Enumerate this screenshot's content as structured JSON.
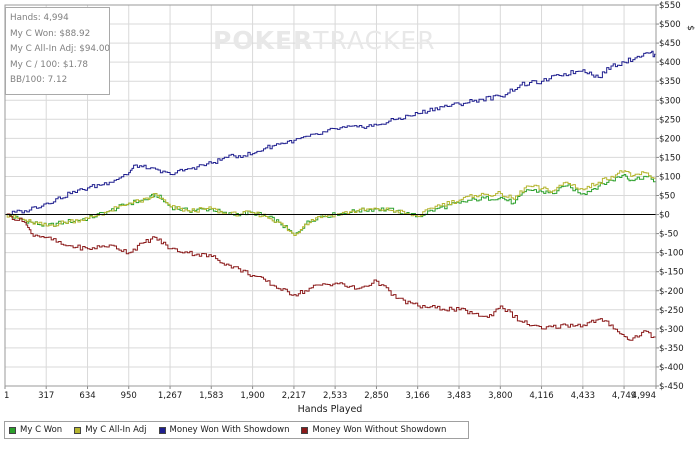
{
  "watermark": {
    "part1": "POKER",
    "part2": "TRACKER"
  },
  "stats": {
    "hands": "Hands: 4,994",
    "won": "My C Won: $88.92",
    "allin": "My C All-In Adj: $94.00",
    "per100": "My C / 100: $1.78",
    "bb100": "BB/100: 7.12"
  },
  "legend": {
    "items": [
      {
        "label": "My C Won",
        "color": "#2ca02c"
      },
      {
        "label": "My C All-In Adj",
        "color": "#b5b52f"
      },
      {
        "label": "Money Won With Showdown",
        "color": "#1f1f8f"
      },
      {
        "label": "Money Won Without Showdown",
        "color": "#8b1a1a"
      }
    ]
  },
  "chart_data": {
    "type": "line",
    "xlabel": "Hands Played",
    "ylabel": "$",
    "xlim": [
      1,
      4994
    ],
    "ylim": [
      -450,
      550
    ],
    "x_ticks": [
      1,
      317,
      634,
      950,
      1267,
      1583,
      1900,
      2217,
      2533,
      2850,
      3166,
      3483,
      3800,
      4116,
      4433,
      4749,
      4994
    ],
    "x_tick_labels": [
      "1",
      "317",
      "634",
      "950",
      "1,267",
      "1,583",
      "1,900",
      "2,217",
      "2,533",
      "2,850",
      "3,166",
      "3,483",
      "3,800",
      "4,116",
      "4,433",
      "4,749",
      "4,994"
    ],
    "y_ticks": [
      550,
      500,
      450,
      400,
      350,
      300,
      250,
      200,
      150,
      100,
      50,
      0,
      -50,
      -100,
      -150,
      -200,
      -250,
      -300,
      -350,
      -400,
      -450
    ],
    "y_tick_labels": [
      "$550",
      "$500",
      "$450",
      "$400",
      "$350",
      "$300",
      "$250",
      "$200",
      "$150",
      "$100",
      "$50",
      "$0",
      "$-50",
      "$-100",
      "$-150",
      "$-200",
      "$-250",
      "$-300",
      "$-350",
      "$-400",
      "$-450"
    ],
    "grid": true,
    "series": [
      {
        "name": "My C Won",
        "color": "#2ca02c",
        "x": [
          1,
          100,
          200,
          317,
          450,
          634,
          800,
          950,
          1100,
          1150,
          1267,
          1400,
          1583,
          1700,
          1900,
          2000,
          2100,
          2217,
          2300,
          2400,
          2533,
          2700,
          2850,
          3000,
          3100,
          3166,
          3300,
          3483,
          3600,
          3800,
          3900,
          4000,
          4116,
          4200,
          4300,
          4433,
          4550,
          4649,
          4749,
          4800,
          4900,
          4994
        ],
        "y": [
          0,
          -10,
          -20,
          -30,
          -20,
          -10,
          10,
          30,
          40,
          55,
          20,
          10,
          15,
          0,
          5,
          -5,
          -20,
          -55,
          -25,
          -5,
          0,
          10,
          15,
          10,
          0,
          -5,
          15,
          30,
          40,
          45,
          30,
          65,
          60,
          55,
          75,
          55,
          75,
          90,
          105,
          90,
          100,
          88.92
        ]
      },
      {
        "name": "My C All-In Adj",
        "color": "#b5b52f",
        "x": [
          1,
          100,
          200,
          317,
          450,
          634,
          800,
          950,
          1100,
          1150,
          1267,
          1400,
          1583,
          1700,
          1900,
          2000,
          2100,
          2217,
          2300,
          2400,
          2533,
          2700,
          2850,
          3000,
          3100,
          3166,
          3300,
          3483,
          3600,
          3800,
          3900,
          4000,
          4116,
          4200,
          4300,
          4433,
          4550,
          4649,
          4749,
          4800,
          4900,
          4994
        ],
        "y": [
          0,
          -10,
          -20,
          -30,
          -20,
          -10,
          10,
          30,
          40,
          55,
          20,
          10,
          15,
          0,
          5,
          -5,
          -20,
          -55,
          -25,
          -5,
          0,
          10,
          15,
          10,
          0,
          -5,
          22,
          38,
          50,
          55,
          40,
          75,
          68,
          62,
          85,
          65,
          85,
          100,
          115,
          100,
          110,
          94
        ]
      },
      {
        "name": "Money Won With Showdown",
        "color": "#1f1f8f",
        "x": [
          1,
          150,
          317,
          500,
          634,
          800,
          950,
          1000,
          1100,
          1267,
          1400,
          1583,
          1700,
          1900,
          2000,
          2100,
          2217,
          2400,
          2533,
          2700,
          2850,
          3000,
          3166,
          3300,
          3483,
          3600,
          3800,
          3950,
          4116,
          4250,
          4433,
          4550,
          4649,
          4749,
          4850,
          4950,
          4994
        ],
        "y": [
          0,
          10,
          30,
          55,
          70,
          85,
          110,
          130,
          120,
          105,
          120,
          135,
          150,
          160,
          175,
          185,
          195,
          210,
          225,
          230,
          235,
          250,
          265,
          280,
          290,
          300,
          310,
          340,
          350,
          365,
          380,
          360,
          390,
          400,
          415,
          425,
          415
        ]
      },
      {
        "name": "Money Won Without Showdown",
        "color": "#8b1a1a",
        "x": [
          1,
          150,
          200,
          317,
          450,
          634,
          800,
          950,
          1050,
          1150,
          1267,
          1400,
          1583,
          1700,
          1900,
          2000,
          2100,
          2217,
          2300,
          2400,
          2533,
          2700,
          2850,
          3000,
          3166,
          3300,
          3483,
          3600,
          3700,
          3800,
          3950,
          4116,
          4300,
          4433,
          4550,
          4649,
          4749,
          4800,
          4900,
          4994
        ],
        "y": [
          0,
          -20,
          -50,
          -60,
          -80,
          -90,
          -80,
          -100,
          -75,
          -60,
          -90,
          -100,
          -110,
          -130,
          -160,
          -175,
          -195,
          -210,
          -200,
          -185,
          -180,
          -195,
          -175,
          -220,
          -240,
          -245,
          -250,
          -260,
          -270,
          -240,
          -280,
          -300,
          -290,
          -290,
          -275,
          -290,
          -320,
          -330,
          -305,
          -328
        ]
      }
    ]
  }
}
